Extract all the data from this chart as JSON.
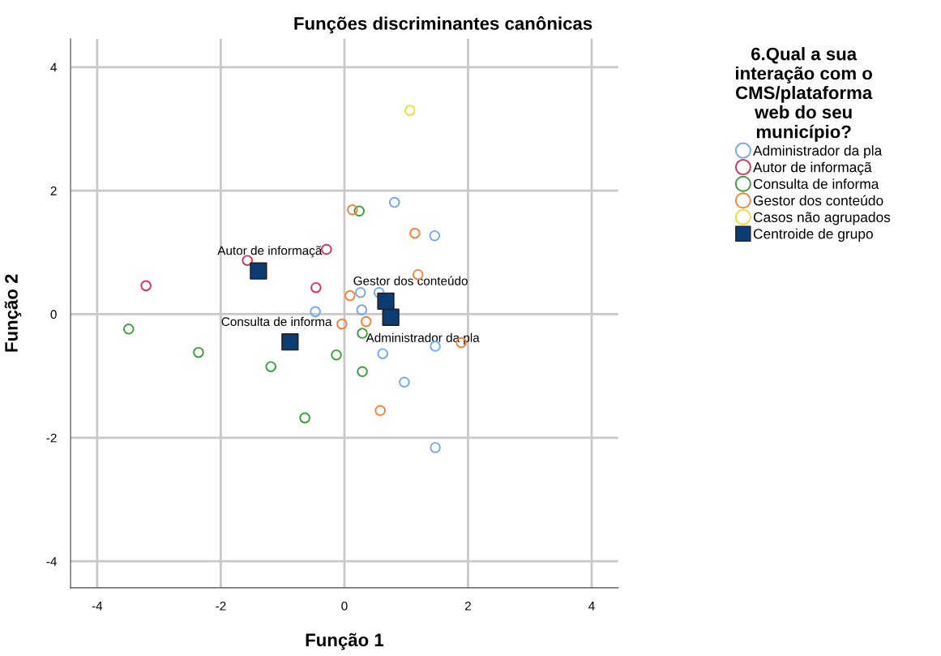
{
  "chart_data": {
    "type": "scatter",
    "title": "Funções discriminantes canônicas",
    "xlabel": "Função 1",
    "ylabel": "Função 2",
    "legend_title": "6.Qual a sua\ninteração com o\nCMS/plataforma\nweb do seu\nmunicípio?",
    "legend": "right",
    "grid": true,
    "marker": "circle",
    "xlim": [
      -4.43,
      4.43
    ],
    "ylim": [
      -4.43,
      4.46
    ],
    "xticks": [
      -4,
      -2,
      0,
      2,
      4
    ],
    "yticks": [
      -4,
      -2,
      0,
      2,
      4
    ],
    "series": [
      {
        "name": "Administrador da pla",
        "color": "#74a9f0",
        "x": [
          0.81,
          1.46,
          0.26,
          0.56,
          0.28,
          -0.47,
          1.47,
          0.62,
          0.97,
          1.47
        ],
        "values": [
          1.81,
          1.27,
          0.35,
          0.35,
          0.07,
          0.04,
          -0.52,
          -0.64,
          -1.1,
          -2.16
        ]
      },
      {
        "name": "Autor de informaçã",
        "color": "#e0305a",
        "x": [
          -3.21,
          -1.57,
          -0.29,
          -0.46
        ],
        "values": [
          0.46,
          0.87,
          1.05,
          0.43
        ]
      },
      {
        "name": "Consulta de informa",
        "color": "#3e9c3e",
        "x": [
          -3.49,
          -2.36,
          -1.19,
          -0.64,
          0.24,
          0.29,
          -0.13,
          0.29
        ],
        "values": [
          -0.24,
          -0.62,
          -0.85,
          -1.68,
          1.67,
          -0.31,
          -0.66,
          -0.93
        ]
      },
      {
        "name": "Gestor dos conteúdo",
        "color": "#f5813f",
        "x": [
          0.13,
          1.14,
          1.19,
          0.09,
          0.35,
          -0.04,
          1.89,
          0.58
        ],
        "values": [
          1.69,
          1.31,
          0.64,
          0.3,
          -0.12,
          -0.16,
          -0.46,
          -1.56
        ]
      },
      {
        "name": "Casos não agrupados",
        "color": "#e6df3a",
        "x": [
          1.06
        ],
        "values": [
          3.3
        ]
      },
      {
        "name": "Centroide de grupo",
        "color": "#0b3d73",
        "marker": "square",
        "x": [
          0.75,
          -1.39,
          -0.88,
          0.67
        ],
        "values": [
          -0.05,
          0.7,
          -0.45,
          0.21
        ]
      }
    ],
    "annotations": [
      {
        "text": "Administrador da pla",
        "x": 0.75,
        "y": -0.05
      },
      {
        "text": "Autor de informaçã",
        "x": -1.39,
        "y": 0.7
      },
      {
        "text": "Consulta de informa",
        "x": -0.88,
        "y": -0.45
      },
      {
        "text": "Gestor dos conteúdo",
        "x": 0.67,
        "y": 0.21
      }
    ]
  }
}
